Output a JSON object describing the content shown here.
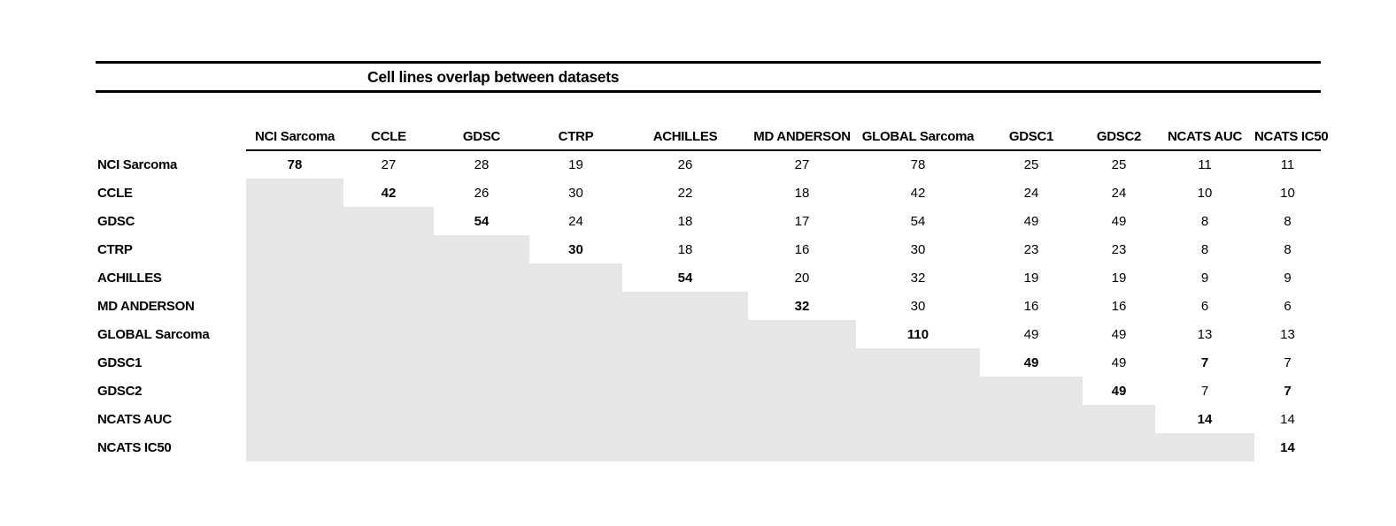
{
  "title": "Cell lines overlap between datasets",
  "table": {
    "columns": [
      "NCI Sarcoma",
      "CCLE",
      "GDSC",
      "CTRP",
      "ACHILLES",
      "MD ANDERSON",
      "GLOBAL Sarcoma",
      "GDSC1",
      "GDSC2",
      "NCATS AUC",
      "NCATS IC50"
    ],
    "rows": [
      {
        "label": "NCI Sarcoma",
        "cells": [
          {
            "v": "78",
            "bold": true
          },
          {
            "v": "27"
          },
          {
            "v": "28"
          },
          {
            "v": "19"
          },
          {
            "v": "26"
          },
          {
            "v": "27"
          },
          {
            "v": "78"
          },
          {
            "v": "25"
          },
          {
            "v": "25"
          },
          {
            "v": "11"
          },
          {
            "v": "11"
          }
        ]
      },
      {
        "label": "CCLE",
        "cells": [
          null,
          {
            "v": "42",
            "bold": true
          },
          {
            "v": "26"
          },
          {
            "v": "30"
          },
          {
            "v": "22"
          },
          {
            "v": "18"
          },
          {
            "v": "42"
          },
          {
            "v": "24"
          },
          {
            "v": "24"
          },
          {
            "v": "10"
          },
          {
            "v": "10"
          }
        ]
      },
      {
        "label": "GDSC",
        "cells": [
          null,
          null,
          {
            "v": "54",
            "bold": true
          },
          {
            "v": "24"
          },
          {
            "v": "18"
          },
          {
            "v": "17"
          },
          {
            "v": "54"
          },
          {
            "v": "49"
          },
          {
            "v": "49"
          },
          {
            "v": "8"
          },
          {
            "v": "8"
          }
        ]
      },
      {
        "label": "CTRP",
        "cells": [
          null,
          null,
          null,
          {
            "v": "30",
            "bold": true
          },
          {
            "v": "18"
          },
          {
            "v": "16"
          },
          {
            "v": "30"
          },
          {
            "v": "23"
          },
          {
            "v": "23"
          },
          {
            "v": "8"
          },
          {
            "v": "8"
          }
        ]
      },
      {
        "label": "ACHILLES",
        "cells": [
          null,
          null,
          null,
          null,
          {
            "v": "54",
            "bold": true
          },
          {
            "v": "20"
          },
          {
            "v": "32"
          },
          {
            "v": "19"
          },
          {
            "v": "19"
          },
          {
            "v": "9"
          },
          {
            "v": "9"
          }
        ]
      },
      {
        "label": "MD ANDERSON",
        "cells": [
          null,
          null,
          null,
          null,
          null,
          {
            "v": "32",
            "bold": true
          },
          {
            "v": "30"
          },
          {
            "v": "16"
          },
          {
            "v": "16"
          },
          {
            "v": "6"
          },
          {
            "v": "6"
          }
        ]
      },
      {
        "label": "GLOBAL Sarcoma",
        "cells": [
          null,
          null,
          null,
          null,
          null,
          null,
          {
            "v": "110",
            "bold": true
          },
          {
            "v": "49"
          },
          {
            "v": "49"
          },
          {
            "v": "13"
          },
          {
            "v": "13"
          }
        ]
      },
      {
        "label": "GDSC1",
        "cells": [
          null,
          null,
          null,
          null,
          null,
          null,
          null,
          {
            "v": "49",
            "bold": true
          },
          {
            "v": "49"
          },
          {
            "v": "7",
            "bold": true
          },
          {
            "v": "7"
          }
        ]
      },
      {
        "label": "GDSC2",
        "cells": [
          null,
          null,
          null,
          null,
          null,
          null,
          null,
          null,
          {
            "v": "49",
            "bold": true
          },
          {
            "v": "7"
          },
          {
            "v": "7",
            "bold": true
          }
        ]
      },
      {
        "label": "NCATS AUC",
        "cells": [
          null,
          null,
          null,
          null,
          null,
          null,
          null,
          null,
          null,
          {
            "v": "14",
            "bold": true
          },
          {
            "v": "14"
          }
        ]
      },
      {
        "label": "NCATS IC50",
        "cells": [
          null,
          null,
          null,
          null,
          null,
          null,
          null,
          null,
          null,
          null,
          {
            "v": "14",
            "bold": true
          }
        ]
      }
    ]
  },
  "colors": {
    "background": "#ffffff",
    "text": "#000000",
    "rule": "#000000",
    "shaded_cell": "#e6e6e6"
  }
}
